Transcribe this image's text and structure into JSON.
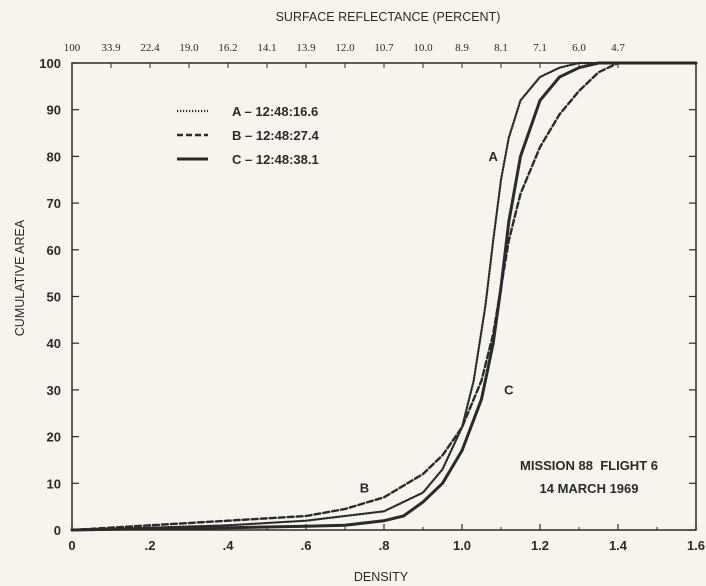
{
  "chart_data": {
    "type": "line",
    "top_axis": {
      "title": "SURFACE REFLECTANCE (PERCENT)",
      "ticks": [
        {
          "x": 0.0,
          "label": "100"
        },
        {
          "x": 0.1,
          "label": "33.9"
        },
        {
          "x": 0.2,
          "label": "22.4"
        },
        {
          "x": 0.3,
          "label": "19.0"
        },
        {
          "x": 0.4,
          "label": "16.2"
        },
        {
          "x": 0.5,
          "label": "14.1"
        },
        {
          "x": 0.6,
          "label": "13.9"
        },
        {
          "x": 0.7,
          "label": "12.0"
        },
        {
          "x": 0.8,
          "label": "10.7"
        },
        {
          "x": 0.9,
          "label": "10.0"
        },
        {
          "x": 1.0,
          "label": "8.9"
        },
        {
          "x": 1.1,
          "label": "8.1"
        },
        {
          "x": 1.2,
          "label": "7.1"
        },
        {
          "x": 1.3,
          "label": "6.0"
        },
        {
          "x": 1.4,
          "label": "4.7"
        }
      ]
    },
    "xlabel": "DENSITY",
    "ylabel": "CUMULATIVE AREA",
    "xlim": [
      0,
      1.6
    ],
    "ylim": [
      0,
      100
    ],
    "xticks": [
      {
        "v": 0,
        "label": "0"
      },
      {
        "v": 0.2,
        "label": ".2"
      },
      {
        "v": 0.4,
        "label": ".4"
      },
      {
        "v": 0.6,
        "label": ".6"
      },
      {
        "v": 0.8,
        "label": ".8"
      },
      {
        "v": 1.0,
        "label": "1.0"
      },
      {
        "v": 1.2,
        "label": "1.2"
      },
      {
        "v": 1.4,
        "label": "1.4"
      },
      {
        "v": 1.6,
        "label": "1.6"
      }
    ],
    "yticks": [
      0,
      10,
      20,
      30,
      40,
      50,
      60,
      70,
      80,
      90,
      100
    ],
    "grid": false,
    "legend_position": "top-left",
    "series": [
      {
        "name": "A – 12:48:16.6",
        "curve_label": "A",
        "style": "dotted",
        "x": [
          0,
          0.2,
          0.4,
          0.6,
          0.8,
          0.9,
          0.95,
          1.0,
          1.03,
          1.06,
          1.08,
          1.1,
          1.12,
          1.15,
          1.2,
          1.25,
          1.3,
          1.35,
          1.4,
          1.6
        ],
        "y": [
          0,
          0.5,
          1,
          2,
          4,
          8,
          13,
          22,
          32,
          48,
          62,
          75,
          84,
          92,
          97,
          99,
          100,
          100,
          100,
          100
        ]
      },
      {
        "name": "B – 12:48:27.4",
        "curve_label": "B",
        "style": "dashed",
        "x": [
          0,
          0.2,
          0.4,
          0.6,
          0.7,
          0.8,
          0.9,
          0.95,
          1.0,
          1.05,
          1.08,
          1.1,
          1.12,
          1.15,
          1.2,
          1.25,
          1.3,
          1.35,
          1.4,
          1.6
        ],
        "y": [
          0,
          1,
          2,
          3,
          4.5,
          7,
          12,
          16,
          22,
          32,
          42,
          52,
          62,
          72,
          82,
          89,
          94,
          98,
          100,
          100
        ]
      },
      {
        "name": "C – 12:48:38.1",
        "curve_label": "C",
        "style": "solid",
        "x": [
          0,
          0.2,
          0.4,
          0.6,
          0.7,
          0.8,
          0.85,
          0.9,
          0.95,
          1.0,
          1.05,
          1.08,
          1.1,
          1.12,
          1.15,
          1.2,
          1.25,
          1.3,
          1.35,
          1.4,
          1.6
        ],
        "y": [
          0,
          0.3,
          0.5,
          0.8,
          1,
          2,
          3,
          6,
          10,
          17,
          28,
          40,
          52,
          66,
          80,
          92,
          97,
          99,
          100,
          100,
          100
        ]
      }
    ],
    "curve_labels": [
      {
        "text": "A",
        "x": 1.08,
        "y": 79
      },
      {
        "text": "B",
        "x": 0.75,
        "y": 8
      },
      {
        "text": "C",
        "x": 1.12,
        "y": 29
      }
    ],
    "annotations": [
      "MISSION 88  FLIGHT 6",
      "14 MARCH 1969"
    ]
  }
}
